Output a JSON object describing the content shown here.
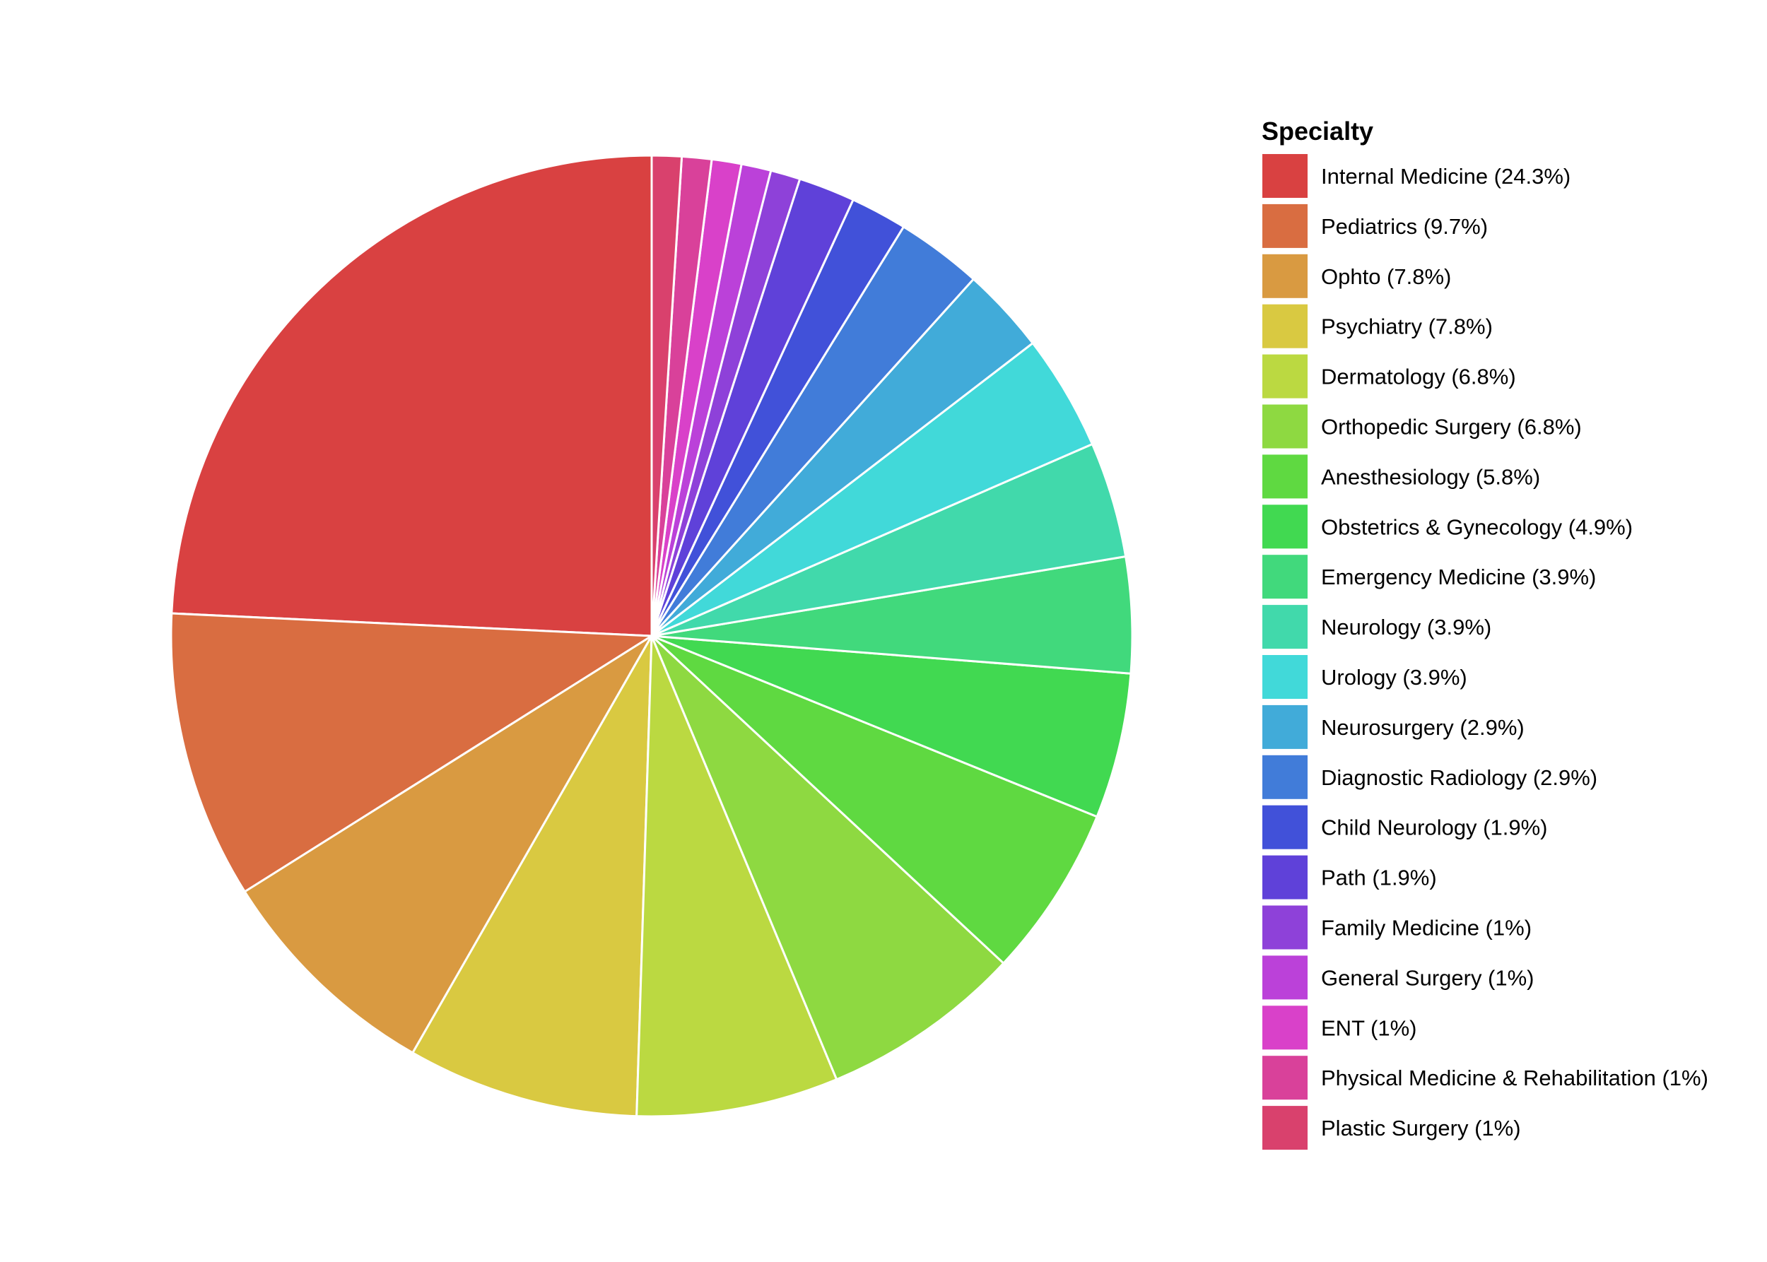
{
  "chart_data": {
    "type": "pie",
    "title": "",
    "legend_title": "Specialty",
    "legend_placement": "right",
    "start_angle_deg": 0,
    "direction": "clockwise",
    "slice_border_color": "#ffffff",
    "slices": [
      {
        "label": "Internal Medicine (24.3%)",
        "name": "Internal Medicine",
        "value": 24.3,
        "color": "#D94141"
      },
      {
        "label": "Pediatrics (9.7%)",
        "name": "Pediatrics",
        "value": 9.7,
        "color": "#D96D41"
      },
      {
        "label": "Ophto (7.8%)",
        "name": "Ophto",
        "value": 7.8,
        "color": "#D99A41"
      },
      {
        "label": "Psychiatry (7.8%)",
        "name": "Psychiatry",
        "value": 7.8,
        "color": "#D9C941"
      },
      {
        "label": "Dermatology (6.8%)",
        "name": "Dermatology",
        "value": 6.8,
        "color": "#BBD941"
      },
      {
        "label": "Orthopedic Surgery (6.8%)",
        "name": "Orthopedic Surgery",
        "value": 6.8,
        "color": "#8ED941"
      },
      {
        "label": "Anesthesiology (5.8%)",
        "name": "Anesthesiology",
        "value": 5.8,
        "color": "#5FD941"
      },
      {
        "label": "Obstetrics & Gynecology (4.9%)",
        "name": "Obstetrics & Gynecology",
        "value": 4.9,
        "color": "#41D951"
      },
      {
        "label": "Emergency Medicine (3.9%)",
        "name": "Emergency Medicine",
        "value": 3.9,
        "color": "#41D97C"
      },
      {
        "label": "Neurology (3.9%)",
        "name": "Neurology",
        "value": 3.9,
        "color": "#41D9AB"
      },
      {
        "label": "Urology (3.9%)",
        "name": "Urology",
        "value": 3.9,
        "color": "#41D9D9"
      },
      {
        "label": "Neurosurgery (2.9%)",
        "name": "Neurosurgery",
        "value": 2.9,
        "color": "#41ABD9"
      },
      {
        "label": "Diagnostic Radiology (2.9%)",
        "name": "Diagnostic Radiology",
        "value": 2.9,
        "color": "#417CD9"
      },
      {
        "label": "Child Neurology (1.9%)",
        "name": "Child Neurology",
        "value": 1.9,
        "color": "#4151D9"
      },
      {
        "label": "Path (1.9%)",
        "name": "Path",
        "value": 1.9,
        "color": "#5F41D9"
      },
      {
        "label": "Family Medicine (1%)",
        "name": "Family Medicine",
        "value": 1.0,
        "color": "#8E41D9"
      },
      {
        "label": "General Surgery (1%)",
        "name": "General Surgery",
        "value": 1.0,
        "color": "#BB41D9"
      },
      {
        "label": "ENT (1%)",
        "name": "ENT",
        "value": 1.0,
        "color": "#D941C9"
      },
      {
        "label": "Physical Medicine & Rehabilitation (1%)",
        "name": "Physical Medicine & Rehabilitation",
        "value": 1.0,
        "color": "#D9419A"
      },
      {
        "label": "Plastic Surgery (1%)",
        "name": "Plastic Surgery",
        "value": 1.0,
        "color": "#D9416D"
      }
    ]
  }
}
